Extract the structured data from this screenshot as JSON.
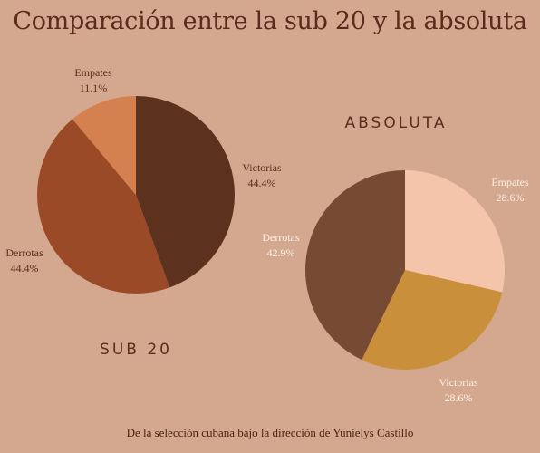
{
  "title": "Comparación entre la sub 20 y la absoluta",
  "footer": "De la selección cubana bajo la dirección de Yunielys Castillo",
  "chart_data": [
    {
      "type": "pie",
      "title": "SUB 20",
      "slices": [
        {
          "label": "Victorias",
          "value": 44.4,
          "value_label": "44.4%",
          "color": "#5c321f"
        },
        {
          "label": "Derrotas",
          "value": 44.4,
          "value_label": "44.4%",
          "color": "#9a4a26"
        },
        {
          "label": "Empates",
          "value": 11.1,
          "value_label": "11.1%",
          "color": "#d4804f"
        }
      ]
    },
    {
      "type": "pie",
      "title": "ABSOLUTA",
      "slices": [
        {
          "label": "Empates",
          "value": 28.6,
          "value_label": "28.6%",
          "color": "#f4c4ab"
        },
        {
          "label": "Victorias",
          "value": 28.6,
          "value_label": "28.6%",
          "color": "#c98f3a"
        },
        {
          "label": "Derrotas",
          "value": 42.9,
          "value_label": "42.9%",
          "color": "#764a33"
        }
      ]
    }
  ]
}
